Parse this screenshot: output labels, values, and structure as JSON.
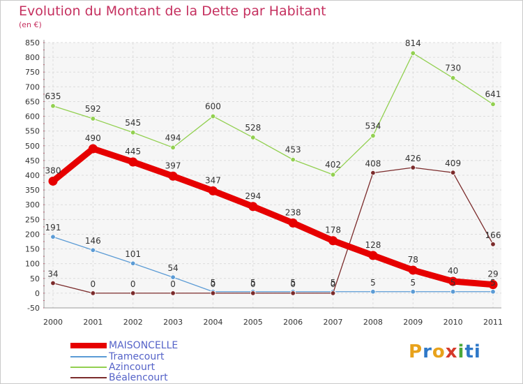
{
  "chart_data": {
    "type": "line",
    "title": "Evolution du Montant de la Dette par Habitant",
    "subtitle": "(en €)",
    "xlabel": "",
    "ylabel": "",
    "categories": [
      "2000",
      "2001",
      "2002",
      "2003",
      "2004",
      "2005",
      "2006",
      "2007",
      "2008",
      "2009",
      "2010",
      "2011"
    ],
    "ylim": [
      -50,
      850
    ],
    "yticks": [
      -50,
      0,
      50,
      100,
      150,
      200,
      250,
      300,
      350,
      400,
      450,
      500,
      550,
      600,
      650,
      700,
      750,
      800,
      850
    ],
    "grid": true,
    "legend_position": "bottom-left",
    "series": [
      {
        "name": "MAISONCELLE",
        "color": "#e60000",
        "values": [
          380,
          490,
          445,
          397,
          347,
          294,
          238,
          178,
          128,
          78,
          40,
          29
        ]
      },
      {
        "name": "Tramecourt",
        "color": "#5b9bd5",
        "values": [
          191,
          146,
          101,
          54,
          5,
          5,
          5,
          5,
          5,
          5,
          5,
          5
        ]
      },
      {
        "name": "Azincourt",
        "color": "#92d050",
        "values": [
          635,
          592,
          545,
          494,
          600,
          528,
          453,
          402,
          534,
          814,
          730,
          641
        ]
      },
      {
        "name": "Béalencourt",
        "color": "#7b2b2b",
        "values": [
          34,
          0,
          0,
          0,
          0,
          0,
          0,
          0,
          408,
          426,
          409,
          166
        ]
      }
    ]
  },
  "brand": {
    "letters": [
      "P",
      "r",
      "o",
      "x",
      "i",
      "t",
      "i"
    ],
    "colors": [
      "#e8a21b",
      "#2e78c8",
      "#e8a21b",
      "#d63a2b",
      "#4aa83a",
      "#2e78c8",
      "#2e78c8"
    ]
  }
}
